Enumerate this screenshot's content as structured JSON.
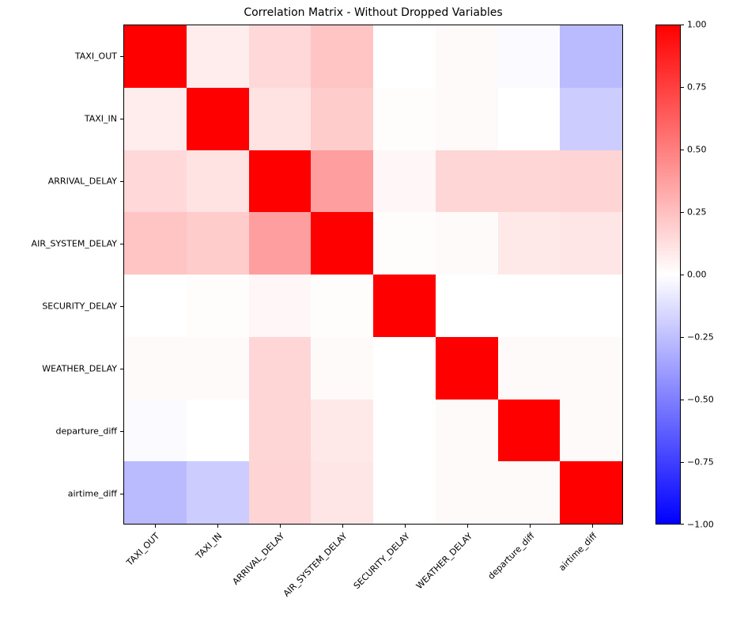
{
  "title": "Correlation Matrix - Without Dropped Variables",
  "accent_colors": {
    "positive_max": "#ff0000",
    "zero": "#ffffff",
    "negative_max": "#0000ff",
    "axis": "#000000"
  },
  "chart_data": {
    "type": "heatmap",
    "title": "Correlation Matrix - Without Dropped Variables",
    "colormap": "bwr",
    "vmin": -1.0,
    "vmax": 1.0,
    "grid": false,
    "variables": [
      "TAXI_OUT",
      "TAXI_IN",
      "ARRIVAL_DELAY",
      "AIR_SYSTEM_DELAY",
      "SECURITY_DELAY",
      "WEATHER_DELAY",
      "departure_diff",
      "airtime_diff"
    ],
    "matrix": [
      [
        1.0,
        0.07,
        0.15,
        0.23,
        0.0,
        0.02,
        -0.02,
        -0.27
      ],
      [
        0.07,
        1.0,
        0.11,
        0.2,
        0.01,
        0.02,
        0.0,
        -0.2
      ],
      [
        0.15,
        0.11,
        1.0,
        0.38,
        0.03,
        0.16,
        0.16,
        0.17
      ],
      [
        0.23,
        0.2,
        0.38,
        1.0,
        0.01,
        0.02,
        0.09,
        0.1
      ],
      [
        0.0,
        0.01,
        0.03,
        0.01,
        1.0,
        0.0,
        0.0,
        0.0
      ],
      [
        0.02,
        0.02,
        0.16,
        0.02,
        0.0,
        1.0,
        0.02,
        0.02
      ],
      [
        -0.02,
        0.0,
        0.16,
        0.09,
        0.0,
        0.02,
        1.0,
        0.02
      ],
      [
        -0.27,
        -0.2,
        0.17,
        0.1,
        0.0,
        0.02,
        0.02,
        1.0
      ]
    ],
    "colorbar": {
      "position": "right",
      "tick_labels": [
        "1.00",
        "0.75",
        "0.50",
        "0.25",
        "0.00",
        "−0.25",
        "−0.50",
        "−0.75",
        "−1.00"
      ],
      "tick_values": [
        1.0,
        0.75,
        0.5,
        0.25,
        0.0,
        -0.25,
        -0.5,
        -0.75,
        -1.0
      ]
    }
  }
}
